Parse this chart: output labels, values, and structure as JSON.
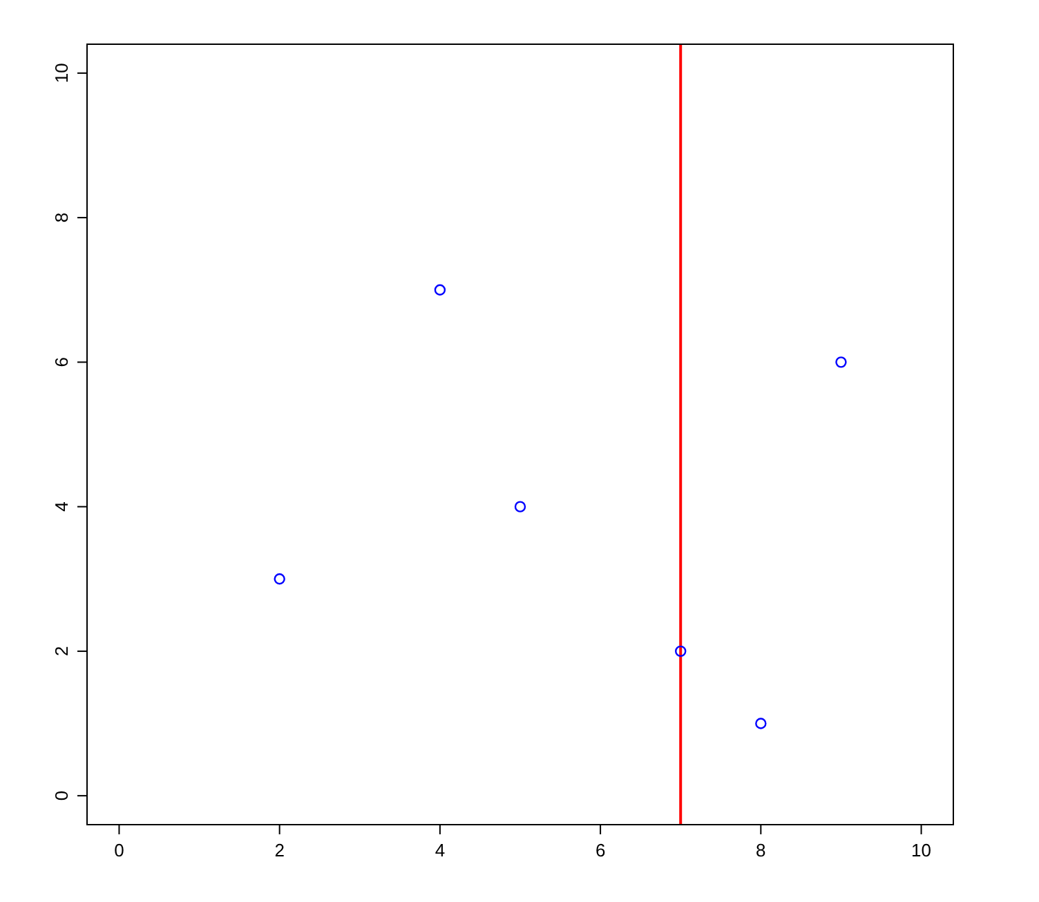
{
  "chart_data": {
    "type": "scatter",
    "x": [
      2,
      4,
      5,
      7,
      8,
      9
    ],
    "series": [
      {
        "color": "#0000ff",
        "values": [
          3,
          7,
          4,
          2,
          1,
          6
        ]
      }
    ],
    "marker": "circle",
    "xlim": [
      -0.4,
      10.4
    ],
    "xticks": [
      0,
      2,
      4,
      6,
      8,
      10
    ],
    "ylim": [
      -0.4,
      10.4
    ],
    "yticks": [
      0,
      2,
      4,
      6,
      8,
      10
    ],
    "ref_lines": [
      {
        "axis": "x",
        "value": 7,
        "color": "#ff0000"
      }
    ]
  }
}
